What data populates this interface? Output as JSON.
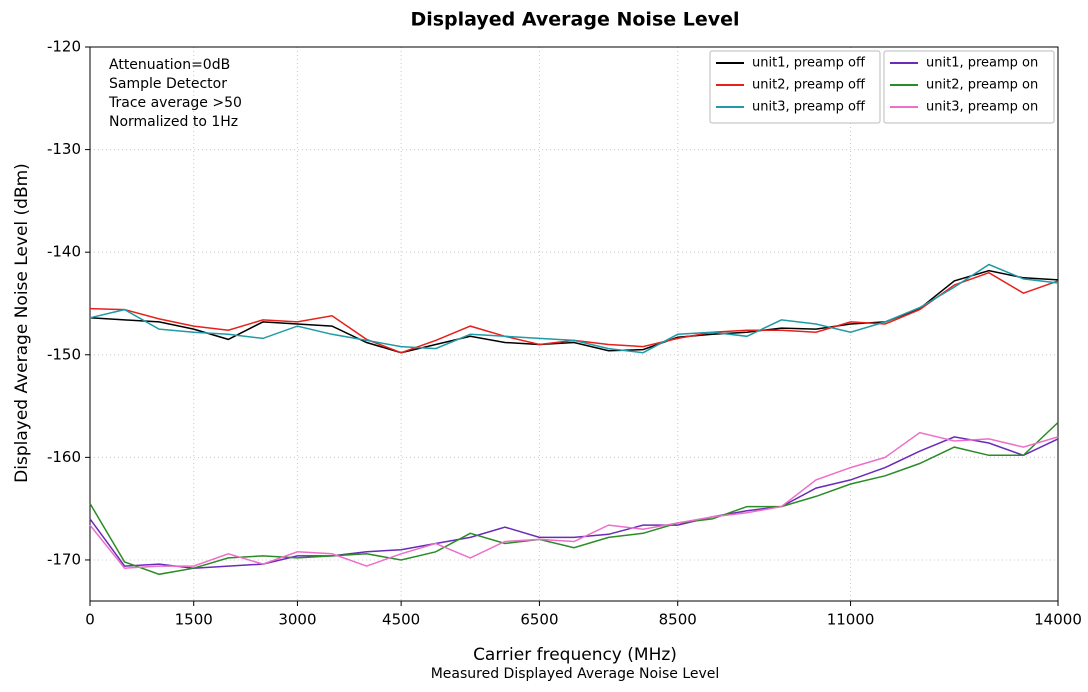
{
  "chart_data": {
    "type": "line",
    "title": "Displayed Average Noise Level",
    "subtitle": "Measured Displayed Average Noise Level",
    "xlabel": "Carrier frequency (MHz)",
    "ylabel": "Displayed Average Noise Level (dBm)",
    "annotations": [
      "Attenuation=0dB",
      "Sample Detector",
      "Trace average >50",
      "Normalized to 1Hz"
    ],
    "x": [
      0,
      500,
      1000,
      1500,
      2000,
      2500,
      3000,
      3500,
      4000,
      4500,
      5000,
      5500,
      6000,
      6500,
      7000,
      7500,
      8000,
      8500,
      9000,
      9500,
      10000,
      10500,
      11000,
      11500,
      12000,
      12500,
      13000,
      13500,
      14000
    ],
    "series": [
      {
        "name": "unit1, preamp off",
        "color": "#000000",
        "values": [
          -146.4,
          -146.6,
          -146.8,
          -147.5,
          -148.5,
          -146.8,
          -147,
          -147.2,
          -148.8,
          -149.8,
          -149,
          -148.2,
          -148.8,
          -149,
          -148.8,
          -149.6,
          -149.5,
          -148.3,
          -148,
          -147.8,
          -147.4,
          -147.5,
          -147,
          -146.8,
          -145.5,
          -142.8,
          -141.8,
          -142.5,
          -142.7
        ]
      },
      {
        "name": "unit2, preamp off",
        "color": "#e8201c",
        "values": [
          -145.5,
          -145.6,
          -146.5,
          -147.2,
          -147.6,
          -146.6,
          -146.8,
          -146.2,
          -148.5,
          -149.8,
          -148.6,
          -147.2,
          -148.2,
          -149,
          -148.6,
          -149,
          -149.2,
          -148.4,
          -147.8,
          -147.6,
          -147.6,
          -147.8,
          -146.8,
          -147,
          -145.6,
          -143.2,
          -142,
          -144,
          -142.8
        ]
      },
      {
        "name": "unit3, preamp off",
        "color": "#1f9aa6",
        "values": [
          -146.4,
          -145.6,
          -147.5,
          -147.8,
          -148,
          -148.4,
          -147.2,
          -148,
          -148.6,
          -149.2,
          -149.4,
          -148,
          -148.2,
          -148.4,
          -148.6,
          -149.4,
          -149.8,
          -148,
          -147.8,
          -148.2,
          -146.6,
          -147,
          -147.8,
          -146.8,
          -145.4,
          -143.4,
          -141.2,
          -142.6,
          -143
        ]
      },
      {
        "name": "unit1, preamp on",
        "color": "#6a2bb8",
        "values": [
          -166,
          -170.6,
          -170.4,
          -170.8,
          -170.6,
          -170.4,
          -169.6,
          -169.6,
          -169.2,
          -169,
          -168.4,
          -167.8,
          -166.8,
          -167.8,
          -167.8,
          -167.5,
          -166.6,
          -166.6,
          -165.8,
          -165.2,
          -164.8,
          -163,
          -162.2,
          -161,
          -159.4,
          -158,
          -158.6,
          -159.8,
          -158.2
        ]
      },
      {
        "name": "unit2, preamp on",
        "color": "#2a8c26",
        "values": [
          -164.5,
          -170.2,
          -171.4,
          -170.8,
          -169.8,
          -169.6,
          -169.8,
          -169.6,
          -169.4,
          -170,
          -169.2,
          -167.4,
          -168.4,
          -168,
          -168.8,
          -167.8,
          -167.4,
          -166.4,
          -166,
          -164.8,
          -164.8,
          -163.8,
          -162.6,
          -161.8,
          -160.6,
          -159,
          -159.8,
          -159.8,
          -156.6
        ]
      },
      {
        "name": "unit3, preamp on",
        "color": "#ee6fc8",
        "values": [
          -166.6,
          -170.8,
          -170.6,
          -170.6,
          -169.4,
          -170.4,
          -169.2,
          -169.4,
          -170.6,
          -169.4,
          -168.4,
          -169.8,
          -168.2,
          -168,
          -168.2,
          -166.6,
          -167,
          -166.4,
          -165.8,
          -165.4,
          -164.8,
          -162.2,
          -161,
          -160,
          -157.6,
          -158.4,
          -158.2,
          -159,
          -158
        ]
      }
    ],
    "xlim": [
      0,
      14000
    ],
    "xticks": [
      0,
      1500,
      3000,
      4500,
      6500,
      8500,
      11000,
      14000
    ],
    "ylim": [
      -174,
      -120
    ],
    "yticks": [
      -120,
      -130,
      -140,
      -150,
      -160,
      -170
    ],
    "grid": true,
    "legend_loc": "upper right",
    "legend_ncol": 2
  }
}
